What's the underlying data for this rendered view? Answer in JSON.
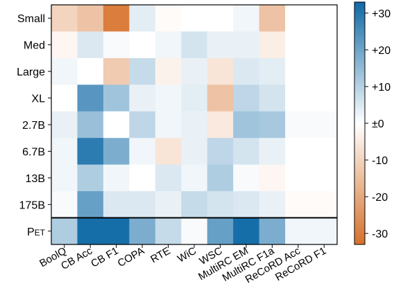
{
  "chart_data": {
    "type": "heatmap",
    "rows": [
      "Small",
      "Med",
      "Large",
      "XL",
      "2.7B",
      "6.7B",
      "13B",
      "175B",
      "PET"
    ],
    "columns": [
      "BoolQ",
      "CB Acc",
      "CB F1",
      "COPA",
      "RTE",
      "WiC",
      "WSC",
      "MultiRC EM",
      "MultiRC F1a",
      "ReCoRD Acc",
      "ReCoRD F1"
    ],
    "values": [
      [
        -10,
        -14,
        -30,
        4,
        -1,
        0,
        0,
        2,
        -14,
        0,
        0
      ],
      [
        -2,
        5,
        1,
        0,
        2,
        6,
        3,
        3,
        -4,
        0,
        0
      ],
      [
        2,
        0,
        -12,
        8,
        -3,
        3,
        -6,
        5,
        4,
        0,
        0
      ],
      [
        0,
        23,
        13,
        3,
        2,
        4,
        -14,
        9,
        6,
        0,
        0
      ],
      [
        3,
        14,
        0,
        9,
        2,
        3,
        -5,
        13,
        12,
        1,
        1
      ],
      [
        2,
        29,
        18,
        2,
        -6,
        3,
        9,
        6,
        3,
        0,
        0
      ],
      [
        2,
        11,
        2,
        0,
        5,
        2,
        11,
        1,
        -2,
        0,
        0
      ],
      [
        1,
        21,
        5,
        5,
        3,
        8,
        6,
        5,
        3,
        -1,
        -1
      ],
      [
        11,
        32,
        32,
        18,
        8,
        1,
        21,
        32,
        18,
        2,
        2
      ]
    ],
    "color_range": [
      -33,
      33
    ],
    "colorbar": {
      "ticks": [
        30,
        20,
        10,
        0,
        -10,
        -20,
        -30
      ],
      "tick_labels": [
        "+30",
        "+20",
        "+10",
        "±0",
        "-10",
        "-20",
        "-30"
      ]
    },
    "colors": {
      "negative": "#d6702a",
      "neutral": "#ffffff",
      "positive": "#0f69a6"
    },
    "separator_before_last_row": true
  }
}
